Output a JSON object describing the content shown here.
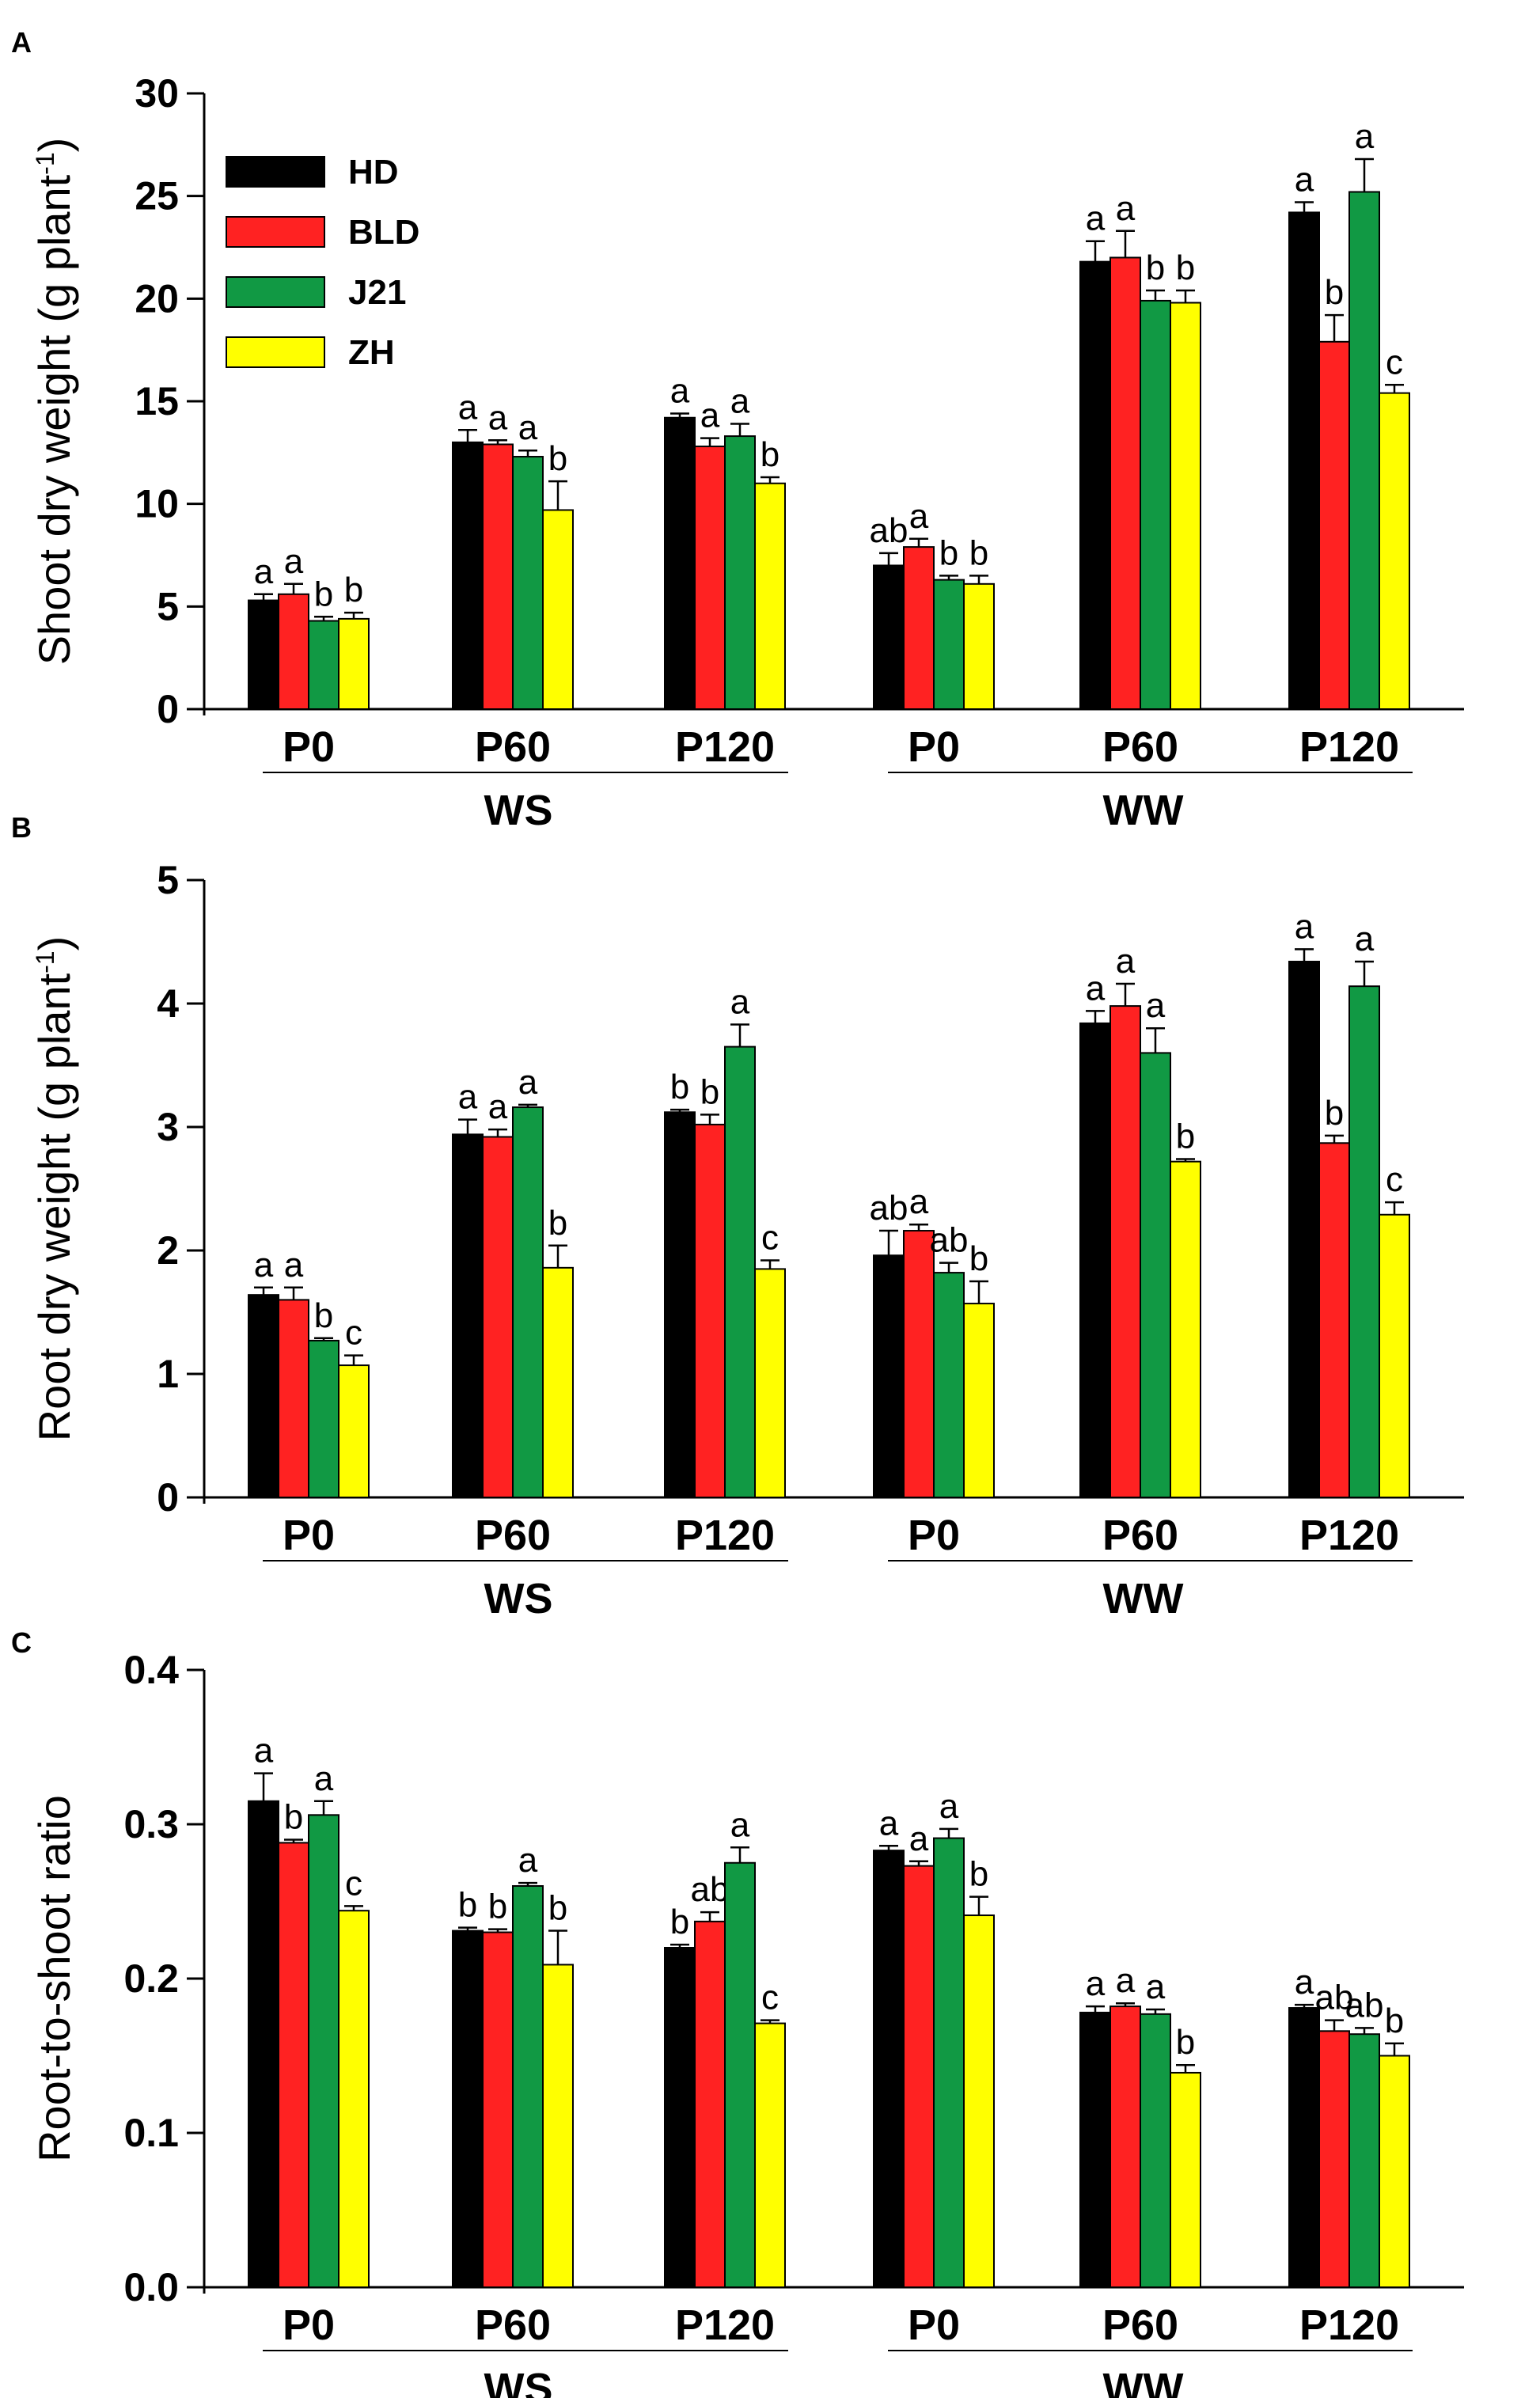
{
  "chart_data": [
    {
      "panel": "A",
      "type": "bar",
      "ylabel": "Shoot dry weight (g plant-1)",
      "ylabel_main": "Shoot dry weight (g plant",
      "ylabel_sup": "-1",
      "ylabel_close": ")",
      "ylim": [
        0,
        30
      ],
      "yticks": [
        "0",
        "5",
        "10",
        "15",
        "20",
        "25",
        "30"
      ],
      "tick_values": [
        0,
        5,
        10,
        15,
        20,
        25,
        30
      ],
      "categories": [
        "P0",
        "P60",
        "P120",
        "P0",
        "P60",
        "P120"
      ],
      "groups": [
        {
          "label": "WS",
          "span": [
            0,
            2
          ]
        },
        {
          "label": "WW",
          "span": [
            3,
            5
          ]
        }
      ],
      "legend": true,
      "series": [
        {
          "name": "HD",
          "color": "#000000",
          "values": [
            5.3,
            13.0,
            14.2,
            7.0,
            21.8,
            24.2
          ],
          "errors": [
            0.3,
            0.6,
            0.2,
            0.6,
            1.0,
            0.5
          ],
          "labels": [
            "a",
            "a",
            "a",
            "ab",
            "a",
            "a"
          ]
        },
        {
          "name": "BLD",
          "color": "#ff2222",
          "values": [
            5.6,
            12.9,
            12.8,
            7.9,
            22.0,
            17.9
          ],
          "errors": [
            0.5,
            0.2,
            0.4,
            0.4,
            1.3,
            1.3
          ],
          "labels": [
            "a",
            "a",
            "a",
            "a",
            "a",
            "b"
          ]
        },
        {
          "name": "J21",
          "color": "#119944",
          "values": [
            4.3,
            12.3,
            13.3,
            6.3,
            19.9,
            25.2
          ],
          "errors": [
            0.2,
            0.3,
            0.6,
            0.2,
            0.5,
            1.6
          ],
          "labels": [
            "b",
            "a",
            "a",
            "b",
            "b",
            "a"
          ]
        },
        {
          "name": "ZH",
          "color": "#ffff00",
          "values": [
            4.4,
            9.7,
            11.0,
            6.1,
            19.8,
            15.4
          ],
          "errors": [
            0.3,
            1.4,
            0.3,
            0.4,
            0.6,
            0.4
          ],
          "labels": [
            "b",
            "b",
            "b",
            "b",
            "b",
            "c"
          ]
        }
      ]
    },
    {
      "panel": "B",
      "type": "bar",
      "ylabel": "Root dry weight (g plant-1)",
      "ylabel_main": "Root dry weight (g plant",
      "ylabel_sup": "-1",
      "ylabel_close": ")",
      "ylim": [
        0,
        5
      ],
      "yticks": [
        "0",
        "1",
        "2",
        "3",
        "4",
        "5"
      ],
      "tick_values": [
        0,
        1,
        2,
        3,
        4,
        5
      ],
      "categories": [
        "P0",
        "P60",
        "P120",
        "P0",
        "P60",
        "P120"
      ],
      "groups": [
        {
          "label": "WS",
          "span": [
            0,
            2
          ]
        },
        {
          "label": "WW",
          "span": [
            3,
            5
          ]
        }
      ],
      "legend": false,
      "series": [
        {
          "name": "HD",
          "color": "#000000",
          "values": [
            1.64,
            2.94,
            3.12,
            1.96,
            3.84,
            4.34
          ],
          "errors": [
            0.06,
            0.12,
            0.02,
            0.2,
            0.1,
            0.1
          ],
          "labels": [
            "a",
            "a",
            "b",
            "ab",
            "a",
            "a"
          ]
        },
        {
          "name": "BLD",
          "color": "#ff2222",
          "values": [
            1.6,
            2.92,
            3.02,
            2.16,
            3.98,
            2.87
          ],
          "errors": [
            0.1,
            0.06,
            0.08,
            0.05,
            0.18,
            0.06
          ],
          "labels": [
            "a",
            "a",
            "b",
            "a",
            "a",
            "b"
          ]
        },
        {
          "name": "J21",
          "color": "#119944",
          "values": [
            1.27,
            3.16,
            3.65,
            1.82,
            3.6,
            4.14
          ],
          "errors": [
            0.02,
            0.02,
            0.18,
            0.08,
            0.2,
            0.2
          ],
          "labels": [
            "b",
            "a",
            "a",
            "ab",
            "a",
            "a"
          ]
        },
        {
          "name": "ZH",
          "color": "#ffff00",
          "values": [
            1.07,
            1.86,
            1.85,
            1.57,
            2.72,
            2.29
          ],
          "errors": [
            0.08,
            0.18,
            0.07,
            0.18,
            0.02,
            0.1
          ],
          "labels": [
            "c",
            "b",
            "c",
            "b",
            "b",
            "c"
          ]
        }
      ]
    },
    {
      "panel": "C",
      "type": "bar",
      "ylabel": "Root-to-shoot ratio",
      "ylabel_main": "Root-to-shoot ratio",
      "ylabel_sup": "",
      "ylabel_close": "",
      "ylim": [
        0,
        0.4
      ],
      "yticks": [
        "0.0",
        "0.1",
        "0.2",
        "0.3",
        "0.4"
      ],
      "tick_values": [
        0,
        0.1,
        0.2,
        0.3,
        0.4
      ],
      "categories": [
        "P0",
        "P60",
        "P120",
        "P0",
        "P60",
        "P120"
      ],
      "groups": [
        {
          "label": "WS",
          "span": [
            0,
            2
          ]
        },
        {
          "label": "WW",
          "span": [
            3,
            5
          ]
        }
      ],
      "legend": false,
      "series": [
        {
          "name": "HD",
          "color": "#000000",
          "values": [
            0.315,
            0.231,
            0.22,
            0.283,
            0.178,
            0.181
          ],
          "errors": [
            0.018,
            0.002,
            0.002,
            0.003,
            0.004,
            0.002
          ],
          "labels": [
            "a",
            "b",
            "b",
            "a",
            "a",
            "a"
          ]
        },
        {
          "name": "BLD",
          "color": "#ff2222",
          "values": [
            0.288,
            0.23,
            0.237,
            0.273,
            0.182,
            0.166
          ],
          "errors": [
            0.002,
            0.002,
            0.006,
            0.003,
            0.002,
            0.007
          ],
          "labels": [
            "b",
            "b",
            "ab",
            "a",
            "a",
            "ab"
          ]
        },
        {
          "name": "J21",
          "color": "#119944",
          "values": [
            0.306,
            0.26,
            0.275,
            0.291,
            0.177,
            0.164
          ],
          "errors": [
            0.009,
            0.002,
            0.01,
            0.006,
            0.003,
            0.004
          ],
          "labels": [
            "a",
            "a",
            "a",
            "a",
            "a",
            "ab"
          ]
        },
        {
          "name": "ZH",
          "color": "#ffff00",
          "values": [
            0.244,
            0.209,
            0.171,
            0.241,
            0.139,
            0.15
          ],
          "errors": [
            0.003,
            0.022,
            0.002,
            0.012,
            0.005,
            0.008
          ],
          "labels": [
            "c",
            "b",
            "c",
            "b",
            "b",
            "b"
          ]
        }
      ]
    }
  ]
}
